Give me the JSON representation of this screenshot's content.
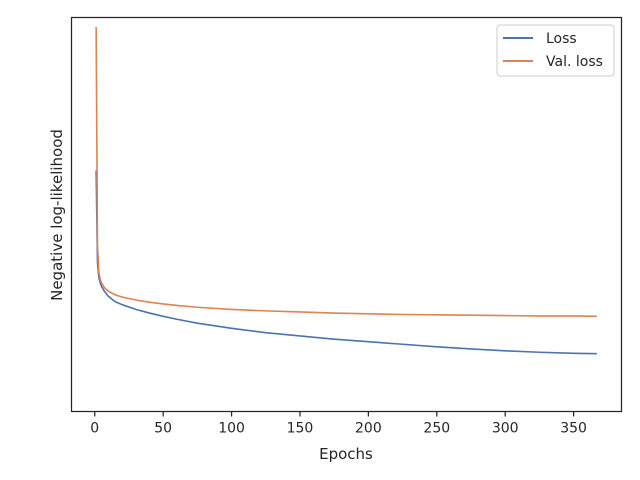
{
  "chart_data": {
    "type": "line",
    "xlabel": "Epochs",
    "ylabel": "Negative log-likelihood",
    "xlim": [
      -17,
      385
    ],
    "ylim": [
      0,
      1
    ],
    "xticks": [
      0,
      50,
      100,
      150,
      200,
      250,
      300,
      350
    ],
    "xtick_labels": [
      "0",
      "50",
      "100",
      "150",
      "200",
      "250",
      "300",
      "350"
    ],
    "yticks_visible": false,
    "grid": false,
    "legend_position": "top-right",
    "series": [
      {
        "name": "Loss",
        "color": "#4c72b0",
        "x": [
          1,
          2,
          3,
          4,
          5,
          7,
          10,
          15,
          20,
          30,
          40,
          50,
          60,
          75,
          100,
          125,
          150,
          175,
          200,
          225,
          250,
          275,
          300,
          325,
          350,
          367
        ],
        "y": [
          0.605,
          0.35,
          0.31,
          0.295,
          0.285,
          0.272,
          0.258,
          0.243,
          0.235,
          0.222,
          0.212,
          0.203,
          0.195,
          0.184,
          0.17,
          0.158,
          0.149,
          0.14,
          0.133,
          0.126,
          0.119,
          0.113,
          0.108,
          0.104,
          0.101,
          0.1
        ]
      },
      {
        "name": "Val. loss",
        "color": "#dd8452",
        "x": [
          1,
          2,
          3,
          4,
          5,
          7,
          10,
          15,
          20,
          30,
          40,
          50,
          60,
          75,
          100,
          125,
          150,
          175,
          200,
          225,
          250,
          275,
          300,
          325,
          350,
          367
        ],
        "y": [
          1.0,
          0.4,
          0.325,
          0.305,
          0.295,
          0.282,
          0.272,
          0.262,
          0.256,
          0.248,
          0.242,
          0.237,
          0.233,
          0.228,
          0.222,
          0.218,
          0.215,
          0.212,
          0.21,
          0.208,
          0.207,
          0.206,
          0.205,
          0.204,
          0.204,
          0.203
        ]
      }
    ]
  }
}
